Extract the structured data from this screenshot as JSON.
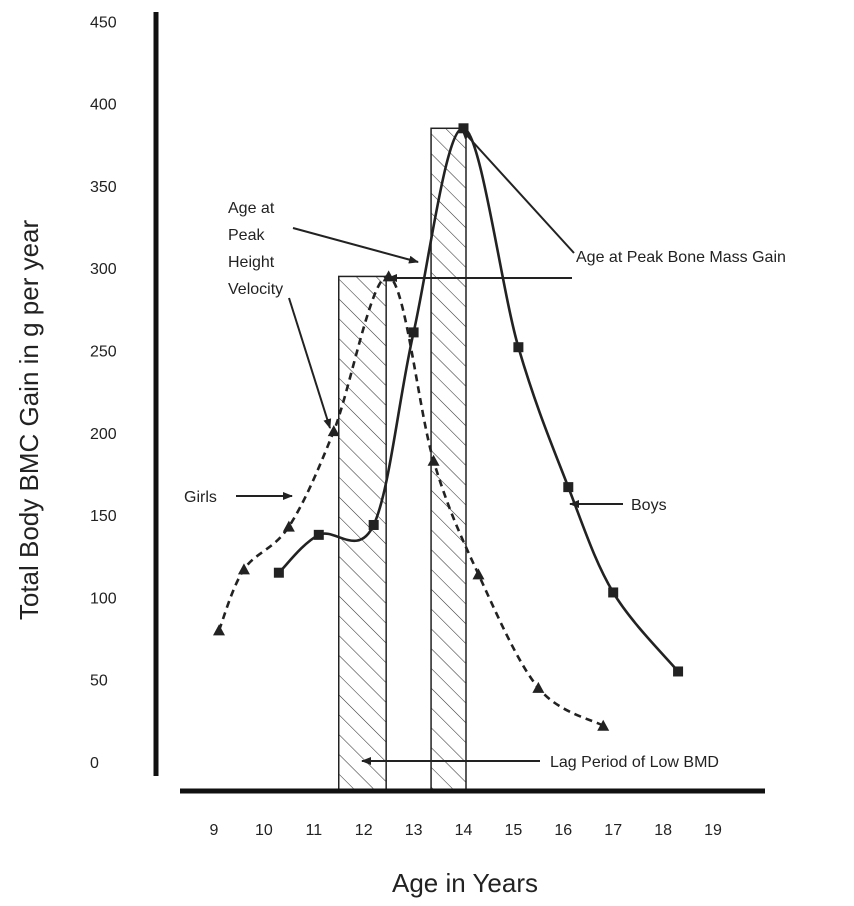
{
  "chart_data": {
    "type": "line",
    "xlabel": "Age in Years",
    "ylabel": "Total Body BMC Gain in g per year",
    "xlim": [
      8.5,
      20
    ],
    "ylim": [
      0,
      450
    ],
    "x_ticks": [
      9,
      10,
      11,
      12,
      13,
      14,
      15,
      16,
      17,
      18,
      19
    ],
    "y_ticks": [
      0,
      50,
      100,
      150,
      200,
      250,
      300,
      350,
      400,
      450
    ],
    "grid": false,
    "series": [
      {
        "name": "Girls",
        "style": "dashed",
        "marker": "triangle",
        "color": "#222222",
        "x": [
          9.1,
          9.6,
          10.5,
          11.4,
          12.5,
          13.4,
          14.3,
          15.5,
          16.8
        ],
        "y": [
          80,
          117,
          143,
          201,
          295,
          183,
          114,
          45,
          22
        ]
      },
      {
        "name": "Boys",
        "style": "solid",
        "marker": "square",
        "color": "#222222",
        "x": [
          10.3,
          11.1,
          12.2,
          13.0,
          14.0,
          15.1,
          16.1,
          17.0,
          18.3
        ],
        "y": [
          115,
          138,
          144,
          261,
          385,
          252,
          167,
          103,
          55
        ]
      }
    ],
    "shaded_periods": [
      [
        11.5,
        12.45
      ],
      [
        13.35,
        14.05
      ]
    ],
    "annotations": {
      "peak_height": [
        "Age at",
        "Peak",
        "Height",
        "Velocity"
      ],
      "peak_bone": "Age at Peak Bone Mass Gain",
      "girls": "Girls",
      "boys": "Boys",
      "lag": "Lag Period of Low BMD"
    }
  }
}
